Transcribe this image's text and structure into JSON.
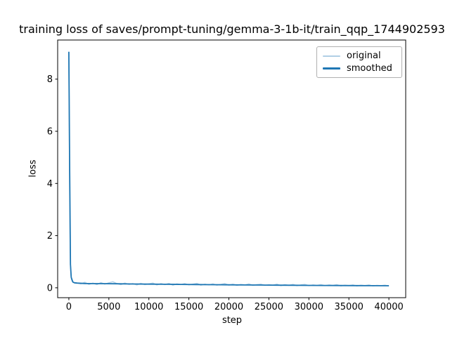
{
  "title": "training loss of saves/prompt-tuning/gemma-3-1b-it/train_qqp_1744902593",
  "chart_data": {
    "type": "line",
    "title": "training loss of saves/prompt-tuning/gemma-3-1b-it/train_qqp_1744902593",
    "xlabel": "step",
    "ylabel": "loss",
    "x_ticks": [
      0,
      5000,
      10000,
      15000,
      20000,
      25000,
      30000,
      35000,
      40000
    ],
    "y_ticks": [
      0,
      2,
      4,
      6,
      8
    ],
    "xlim": [
      -1400,
      42100
    ],
    "ylim": [
      -0.38,
      9.5
    ],
    "grid": false,
    "legend_position": "upper right",
    "background_color": "#ffffff",
    "series": [
      {
        "name": "original",
        "color": "#b0cfe5",
        "line_width": 1.5,
        "x": [
          1,
          40,
          80,
          120,
          160,
          200,
          260,
          320,
          400,
          500,
          700,
          1000,
          1500,
          2000,
          2500,
          3000,
          3500,
          4000,
          4500,
          5000,
          5500,
          6000,
          6500,
          7000,
          7500,
          8000,
          8500,
          9000,
          9500,
          10000,
          10500,
          11000,
          11500,
          12000,
          12500,
          13000,
          13500,
          14000,
          14500,
          15000,
          15500,
          16000,
          16500,
          17000,
          17500,
          18000,
          18500,
          19000,
          19500,
          20000,
          20500,
          21000,
          21500,
          22000,
          22500,
          23000,
          23500,
          24000,
          24500,
          25000,
          25500,
          26000,
          26500,
          27000,
          27500,
          28000,
          28500,
          29000,
          29500,
          30000,
          30500,
          31000,
          31500,
          32000,
          32500,
          33000,
          33500,
          34000,
          34500,
          35000,
          35500,
          36000,
          36500,
          37000,
          37500,
          38000,
          38500,
          39000,
          39500,
          40000
        ],
        "y": [
          9.05,
          7.2,
          4.8,
          2.9,
          1.6,
          0.9,
          0.5,
          0.32,
          0.26,
          0.22,
          0.2,
          0.19,
          0.15,
          0.21,
          0.13,
          0.18,
          0.12,
          0.2,
          0.14,
          0.19,
          0.23,
          0.16,
          0.12,
          0.18,
          0.13,
          0.16,
          0.11,
          0.17,
          0.12,
          0.15,
          0.18,
          0.11,
          0.16,
          0.12,
          0.17,
          0.1,
          0.15,
          0.12,
          0.16,
          0.11,
          0.14,
          0.17,
          0.1,
          0.14,
          0.11,
          0.15,
          0.1,
          0.13,
          0.16,
          0.1,
          0.14,
          0.09,
          0.13,
          0.11,
          0.15,
          0.09,
          0.12,
          0.14,
          0.09,
          0.12,
          0.1,
          0.14,
          0.08,
          0.12,
          0.09,
          0.13,
          0.08,
          0.11,
          0.13,
          0.08,
          0.11,
          0.09,
          0.12,
          0.08,
          0.11,
          0.09,
          0.12,
          0.07,
          0.1,
          0.08,
          0.11,
          0.07,
          0.1,
          0.08,
          0.11,
          0.07,
          0.09,
          0.08,
          0.1,
          0.07
        ]
      },
      {
        "name": "smoothed",
        "color": "#1f77b4",
        "line_width": 1.8,
        "x": [
          1,
          100,
          200,
          300,
          500,
          700,
          1000,
          2000,
          4000,
          6000,
          8000,
          10000,
          12000,
          14000,
          16000,
          18000,
          20000,
          22000,
          24000,
          26000,
          28000,
          30000,
          32000,
          34000,
          36000,
          38000,
          40000
        ],
        "y": [
          9.05,
          4.5,
          0.9,
          0.4,
          0.22,
          0.19,
          0.18,
          0.165,
          0.158,
          0.152,
          0.146,
          0.14,
          0.134,
          0.128,
          0.123,
          0.118,
          0.113,
          0.108,
          0.104,
          0.1,
          0.096,
          0.092,
          0.089,
          0.086,
          0.083,
          0.081,
          0.079
        ]
      }
    ]
  },
  "legend": {
    "entries": [
      "original",
      "smoothed"
    ]
  }
}
